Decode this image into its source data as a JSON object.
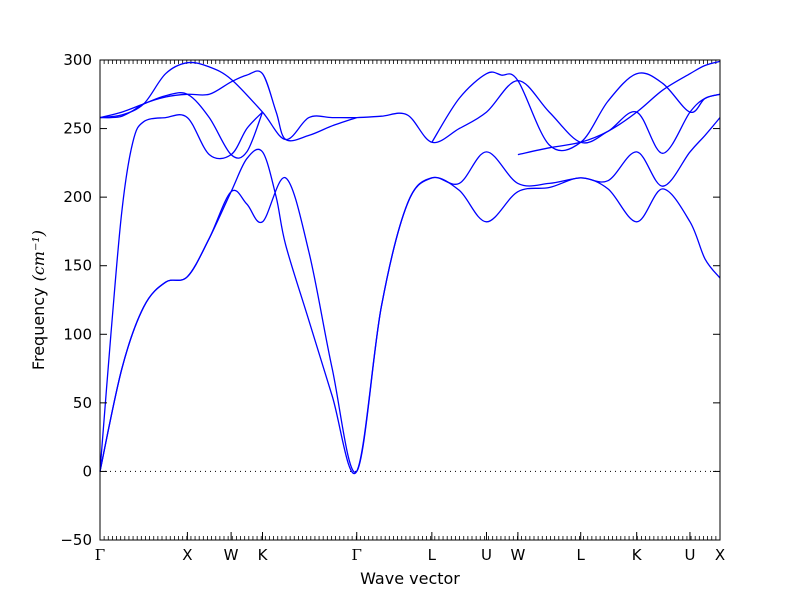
{
  "chart_data": {
    "type": "line",
    "title": "",
    "xlabel": "Wave vector",
    "ylabel": "Frequency",
    "ylabel_unit": "(cm⁻¹)",
    "ylim": [
      -50,
      300
    ],
    "yticks": [
      -50,
      0,
      50,
      100,
      150,
      200,
      250,
      300
    ],
    "xlim": [
      0,
      4.54
    ],
    "high_symmetry_points": [
      {
        "label": "Γ",
        "x": 0.0
      },
      {
        "label": "X",
        "x": 0.64
      },
      {
        "label": "W",
        "x": 0.96
      },
      {
        "label": "K",
        "x": 1.19
      },
      {
        "label": "Γ",
        "x": 1.88
      },
      {
        "label": "L",
        "x": 2.43
      },
      {
        "label": "U",
        "x": 2.83
      },
      {
        "label": "W",
        "x": 3.06
      },
      {
        "label": "L",
        "x": 3.52
      },
      {
        "label": "K",
        "x": 3.93
      },
      {
        "label": "U",
        "x": 4.32
      },
      {
        "label": "X",
        "x": 4.54
      }
    ],
    "zero_line": true,
    "line_color": "#0000ff",
    "series": [
      {
        "x": [
          0,
          0.16,
          0.32,
          0.48,
          0.64,
          0.8,
          0.96,
          1.075,
          1.19,
          1.36,
          1.53,
          1.7,
          1.88,
          2.06,
          2.25,
          2.43,
          2.63,
          2.83,
          3.06,
          3.29,
          3.52,
          3.72,
          3.93,
          4.12,
          4.32,
          4.43,
          4.54
        ],
        "y": [
          0,
          75,
          120,
          138,
          142,
          170,
          204,
          195,
          182,
          214,
          160,
          75,
          0,
          120,
          195,
          214,
          205,
          182,
          204,
          207,
          214,
          206,
          182,
          206,
          182,
          155,
          141
        ]
      },
      {
        "x": [
          0,
          0.16,
          0.32,
          0.48,
          0.64,
          0.8,
          0.96,
          1.075,
          1.19,
          1.29,
          1.36,
          1.53,
          1.7,
          1.88,
          2.06,
          2.25,
          2.43,
          2.63,
          2.83,
          3.06,
          3.29,
          3.52,
          3.72,
          3.93,
          4.12,
          4.32,
          4.43,
          4.54
        ],
        "y": [
          0,
          75,
          120,
          138,
          142,
          170,
          204,
          228,
          233,
          200,
          165,
          110,
          55,
          0,
          120,
          195,
          214,
          210,
          233,
          210,
          210,
          214,
          212,
          233,
          208,
          233,
          245,
          258
        ]
      },
      {
        "x": [
          0,
          0.08,
          0.16,
          0.24,
          0.32,
          0.48,
          0.64,
          0.8,
          0.96,
          1.075,
          1.19,
          1.29,
          1.36,
          1.53,
          1.7,
          1.88
        ],
        "y": [
          258,
          258,
          259,
          263,
          268,
          273,
          275,
          275,
          284,
          289,
          290,
          262,
          242,
          245,
          252,
          258
        ]
      },
      {
        "x": [
          0,
          0.08,
          0.16,
          0.24,
          0.32,
          0.48,
          0.64,
          0.8,
          0.96,
          1.075,
          1.19
        ],
        "y": [
          0,
          100,
          190,
          240,
          255,
          258,
          258,
          231,
          231,
          250,
          262
        ]
      },
      {
        "x": [
          0,
          0.16,
          0.32,
          0.48,
          0.64,
          0.8,
          0.96,
          1.19,
          1.36,
          1.53,
          1.7,
          1.88,
          2.06,
          2.25,
          2.43,
          2.63,
          2.83,
          3.06,
          3.29,
          3.52,
          3.72,
          3.93,
          4.12,
          4.32,
          4.43,
          4.54
        ],
        "y": [
          258,
          260,
          268,
          290,
          298,
          295,
          286,
          262,
          242,
          258,
          258,
          258,
          259,
          260,
          240,
          250,
          262,
          285,
          262,
          240,
          248,
          262,
          278,
          290,
          296,
          299
        ]
      },
      {
        "x": [
          0,
          0.16,
          0.32,
          0.48,
          0.64,
          0.8,
          0.96,
          1.075,
          1.19
        ],
        "y": [
          258,
          262,
          268,
          274,
          275,
          258,
          231,
          233,
          262
        ]
      },
      {
        "x": [
          2.43,
          2.63,
          2.83,
          2.94,
          3.06,
          3.29,
          3.52,
          3.72,
          3.93,
          4.12,
          4.32,
          4.43,
          4.54
        ],
        "y": [
          240,
          272,
          290,
          289,
          285,
          238,
          240,
          270,
          290,
          283,
          262,
          272,
          275
        ]
      },
      {
        "x": [
          3.06,
          3.29,
          3.52,
          3.72,
          3.93,
          4.12,
          4.32,
          4.43,
          4.54
        ],
        "y": [
          231,
          236,
          240,
          248,
          262,
          232,
          262,
          272,
          275
        ]
      }
    ]
  }
}
